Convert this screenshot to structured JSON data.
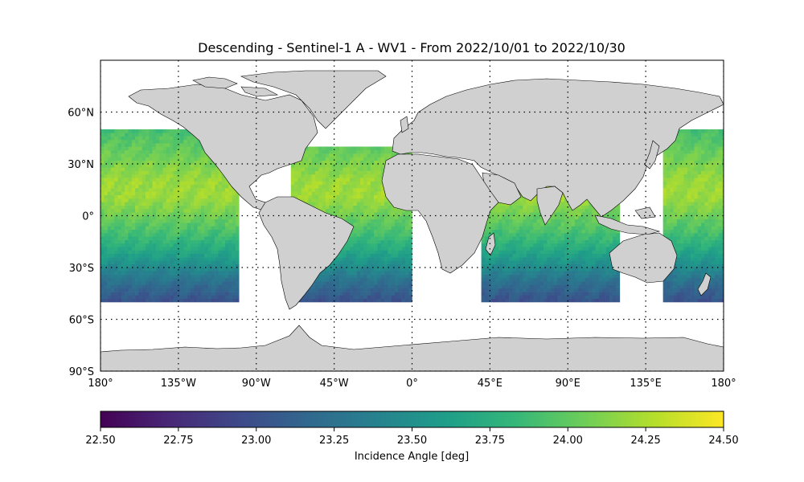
{
  "title": "Descending - Sentinel-1 A - WV1 - From 2022/10/01 to 2022/10/30",
  "map": {
    "projection": "plate-carree",
    "lon_range": [
      -180,
      180
    ],
    "lat_range": [
      -90,
      90
    ],
    "land_color": "#d0d0d0",
    "coastline_color": "#000000",
    "gridlines": "dotted",
    "lon_ticks": [
      {
        "value": -180,
        "label": "180°"
      },
      {
        "value": -135,
        "label": "135°W"
      },
      {
        "value": -90,
        "label": "90°W"
      },
      {
        "value": -45,
        "label": "45°W"
      },
      {
        "value": 0,
        "label": "0°"
      },
      {
        "value": 45,
        "label": "45°E"
      },
      {
        "value": 90,
        "label": "90°E"
      },
      {
        "value": 135,
        "label": "135°E"
      },
      {
        "value": 180,
        "label": "180°"
      }
    ],
    "lat_ticks": [
      {
        "value": 60,
        "label": "60°N"
      },
      {
        "value": 30,
        "label": "30°N"
      },
      {
        "value": 0,
        "label": "0°"
      },
      {
        "value": -30,
        "label": "30°S"
      },
      {
        "value": -60,
        "label": "60°S"
      },
      {
        "value": -90,
        "label": "90°S"
      }
    ]
  },
  "colorbar": {
    "colormap": "viridis",
    "colors": [
      "#440154",
      "#482878",
      "#3e4989",
      "#31688e",
      "#26828e",
      "#1f9e89",
      "#35b779",
      "#6ece58",
      "#b5de2b",
      "#fde725"
    ],
    "min": 22.5,
    "max": 24.5,
    "ticks": [
      "22.50",
      "22.75",
      "23.00",
      "23.25",
      "23.50",
      "23.75",
      "24.00",
      "24.25",
      "24.50"
    ],
    "label": "Incidence Angle [deg]"
  },
  "chart_data": {
    "type": "heatmap",
    "title": "Descending - Sentinel-1 A - WV1 - From 2022/10/01 to 2022/10/30",
    "variable": "Incidence Angle [deg]",
    "value_range": [
      22.5,
      24.5
    ],
    "lat_coverage": [
      -50,
      50
    ],
    "trend": "incidence angle is highest (~24.2 deg) near 10-20°N and decreases southward to ~23.0 deg at 50°S",
    "sample_values_by_latitude": [
      {
        "lat": 50,
        "value": 23.9
      },
      {
        "lat": 40,
        "value": 24.0
      },
      {
        "lat": 30,
        "value": 24.1
      },
      {
        "lat": 20,
        "value": 24.2
      },
      {
        "lat": 10,
        "value": 24.2
      },
      {
        "lat": 0,
        "value": 24.05
      },
      {
        "lat": -10,
        "value": 23.9
      },
      {
        "lat": -20,
        "value": 23.7
      },
      {
        "lat": -30,
        "value": 23.45
      },
      {
        "lat": -40,
        "value": 23.2
      },
      {
        "lat": -50,
        "value": 23.0
      }
    ],
    "swath_regions": [
      {
        "name": "Pacific",
        "lon": [
          -180,
          -100
        ],
        "lat": [
          -50,
          50
        ]
      },
      {
        "name": "West Pacific",
        "lon": [
          145,
          180
        ],
        "lat": [
          -50,
          50
        ]
      },
      {
        "name": "Atlantic",
        "lon": [
          -70,
          0
        ],
        "lat": [
          -50,
          40
        ]
      },
      {
        "name": "Indian Ocean",
        "lon": [
          40,
          120
        ],
        "lat": [
          -50,
          20
        ]
      }
    ]
  }
}
